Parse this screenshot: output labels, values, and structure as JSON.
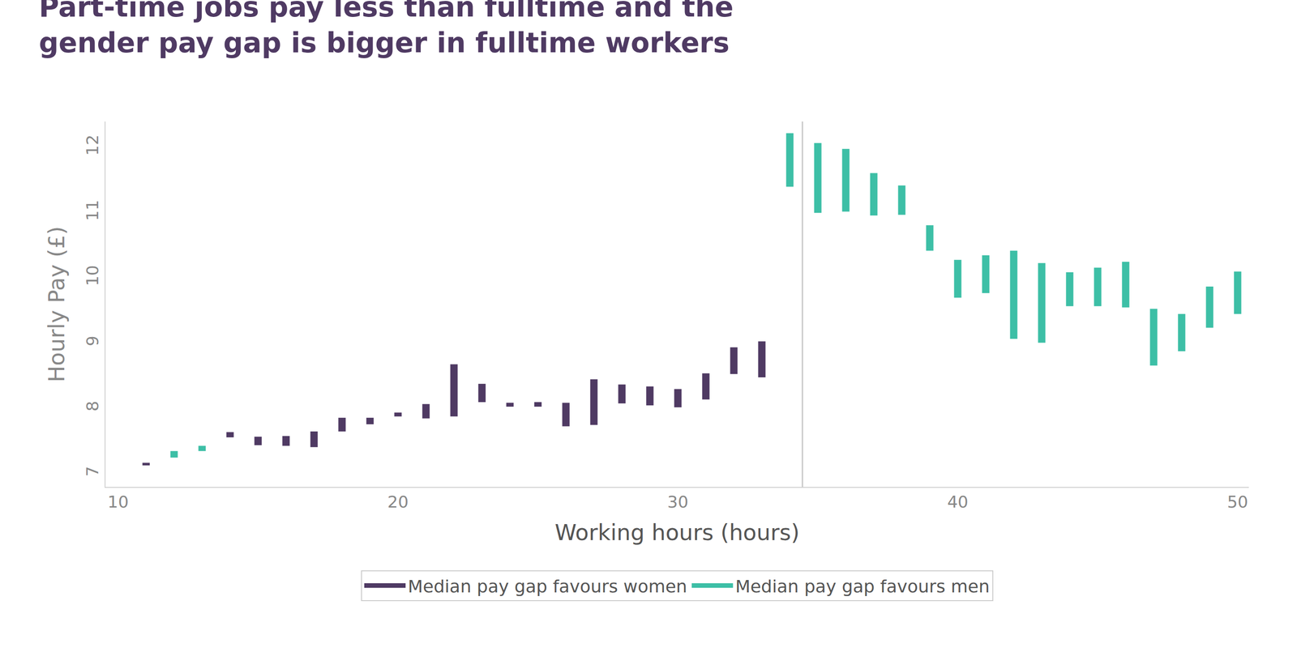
{
  "chart_data": {
    "type": "range_bar",
    "title": "Part-time jobs pay less than fulltime and the gender pay gap is bigger in fulltime workers",
    "x_label": "Working hours (hours)",
    "y_label": "Hourly Pay (£)",
    "xlim": [
      9.55,
      50.4
    ],
    "xticks": [
      10,
      20,
      30,
      40,
      50
    ],
    "ylim": [
      6.8,
      12.4
    ],
    "yticks": [
      7,
      8,
      9,
      10,
      11,
      12
    ],
    "grid": false,
    "legend": "bottom",
    "divider_x": 34.45,
    "series": [
      {
        "name": "Median pay gap favours women",
        "color": "#4f3a63",
        "x": [
          11,
          14,
          15,
          16,
          17,
          18,
          19,
          20,
          21,
          22,
          23,
          24,
          25,
          26,
          27,
          28,
          29,
          30,
          31,
          32,
          33
        ],
        "low": [
          7.13,
          7.56,
          7.44,
          7.43,
          7.41,
          7.65,
          7.76,
          7.88,
          7.85,
          7.88,
          8.1,
          8.03,
          8.03,
          7.73,
          7.75,
          8.08,
          8.05,
          8.02,
          8.14,
          8.53,
          8.48
        ],
        "high": [
          7.17,
          7.64,
          7.57,
          7.58,
          7.65,
          7.86,
          7.86,
          7.94,
          8.07,
          8.68,
          8.38,
          8.09,
          8.1,
          8.09,
          8.45,
          8.37,
          8.34,
          8.3,
          8.54,
          8.94,
          9.03
        ]
      },
      {
        "name": "Median pay gap favours men",
        "color": "#3dbfa6",
        "x": [
          12,
          13,
          34,
          35,
          36,
          37,
          38,
          39,
          40,
          41,
          42,
          43,
          44,
          45,
          46,
          47,
          48,
          49,
          50
        ],
        "low": [
          7.25,
          7.35,
          11.4,
          11.0,
          11.02,
          10.96,
          10.97,
          10.42,
          9.7,
          9.77,
          9.07,
          9.01,
          9.57,
          9.57,
          9.55,
          8.66,
          8.88,
          9.24,
          9.45
        ],
        "high": [
          7.35,
          7.43,
          12.22,
          12.07,
          11.98,
          11.61,
          11.42,
          10.81,
          10.28,
          10.35,
          10.42,
          10.23,
          10.09,
          10.16,
          10.25,
          9.53,
          9.45,
          9.87,
          10.1
        ]
      }
    ]
  }
}
